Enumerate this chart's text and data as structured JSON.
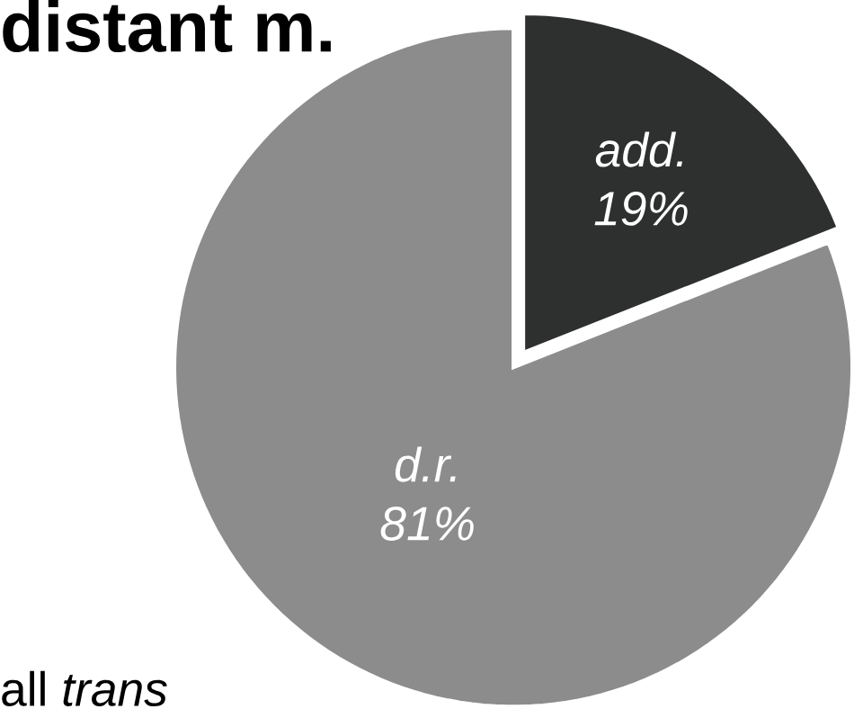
{
  "chart_data": {
    "type": "pie",
    "title": "distant m.",
    "categories": [
      "add.",
      "d.r."
    ],
    "values": [
      19,
      81
    ],
    "colors": [
      "#2e302f",
      "#8c8c8c"
    ],
    "value_labels": [
      "19%",
      "81%"
    ],
    "annotations": [
      "all *trans*"
    ]
  }
}
